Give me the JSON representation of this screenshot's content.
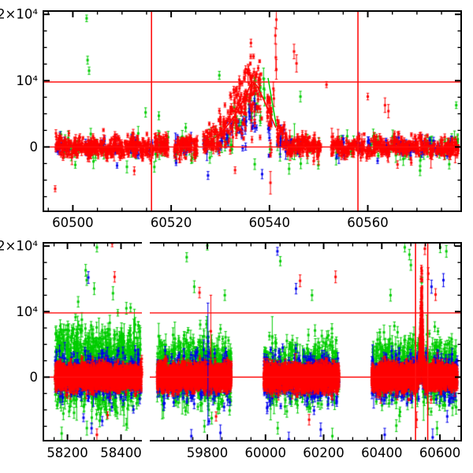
{
  "chart_data": {
    "type": "scatter",
    "title": "",
    "xlabel": "",
    "ylabel": "",
    "legend": "none",
    "grid": "off",
    "colors": {
      "red": "#ff0000",
      "green": "#00cd00",
      "blue": "#0000ee",
      "reference": "#ff1010",
      "axis": "#000000"
    },
    "y_axis_shared": {
      "range": [
        -9700,
        20500
      ],
      "major_ticks": [
        0,
        10000,
        20000
      ],
      "major_labels": [
        "0",
        "10⁴",
        "2×10⁴"
      ],
      "minor_step": 2500
    },
    "panels": [
      {
        "id": "top",
        "seed": 7,
        "x_segments": [
          {
            "range": [
              60494,
              60579
            ],
            "px": [
              55,
              585
            ],
            "major_ticks": [
              60500,
              60520,
              60540,
              60560
            ],
            "major_labels": [
              "60500",
              "60520",
              "60540",
              "60560"
            ],
            "minor_step": 5
          }
        ],
        "h_lines": [
          0,
          9800
        ],
        "v_lines": [
          60516,
          60558
        ],
        "flare": {
          "profile": [
            [
              60526.5,
              300
            ],
            [
              60529,
              1400
            ],
            [
              60531,
              2800
            ],
            [
              60533,
              4800
            ],
            [
              60535,
              7500
            ],
            [
              60536.4,
              9800
            ],
            [
              60537.4,
              9300
            ],
            [
              60538.6,
              7500
            ],
            [
              60539.6,
              5800
            ],
            [
              60541.3,
              2900
            ],
            [
              60542.5,
              1400
            ],
            [
              60543.5,
              400
            ]
          ]
        },
        "model_lines": [
          {
            "color": "red",
            "points": [
              [
                60526.5,
                300
              ],
              [
                60529,
                1400
              ],
              [
                60531,
                2800
              ],
              [
                60533,
                4800
              ],
              [
                60535,
                7500
              ],
              [
                60536.4,
                9800
              ],
              [
                60537.4,
                9300
              ],
              [
                60538.6,
                7500
              ],
              [
                60539.6,
                5800
              ],
              [
                60541.3,
                2900
              ]
            ]
          },
          {
            "color": "green",
            "points": [
              [
                60539.7,
                10400
              ],
              [
                60541.4,
                3100
              ]
            ]
          }
        ],
        "clusters": [
          {
            "x0": 60495,
            "x1": 60578,
            "step": 1,
            "skip_p": 0.12,
            "jitter": 0.45,
            "series": [
              {
                "color": "green",
                "p": 0.6,
                "n": 4,
                "sigma": 950,
                "err": [
                  350,
                  1100
                ],
                "flare_scale": 0.55
              },
              {
                "color": "blue",
                "p": 0.55,
                "n": 6,
                "sigma": 620,
                "err": [
                  250,
                  700
                ],
                "flare_scale": 0.45
              },
              {
                "color": "red",
                "p": 1.0,
                "n": 20,
                "sigma": 680,
                "err": [
                  200,
                  600
                ],
                "flare_scale": 1.0
              }
            ]
          }
        ],
        "outliers": [
          [
            60502.8,
            19400,
            500,
            "green"
          ],
          [
            60503.0,
            13100,
            600,
            "green"
          ],
          [
            60503.3,
            11500,
            550,
            "green"
          ],
          [
            60496.4,
            -6300,
            450,
            "red"
          ],
          [
            60500.5,
            -2700,
            500,
            "green"
          ],
          [
            60509.0,
            -2800,
            400,
            "blue"
          ],
          [
            60511.0,
            -3000,
            900,
            "green"
          ],
          [
            60512.5,
            -3600,
            600,
            "red"
          ],
          [
            60514.8,
            5200,
            700,
            "green"
          ],
          [
            60517.5,
            4700,
            600,
            "green"
          ],
          [
            60521.0,
            -2400,
            400,
            "blue"
          ],
          [
            60527.5,
            -4300,
            600,
            "blue"
          ],
          [
            60529.8,
            10800,
            600,
            "green"
          ],
          [
            60533.0,
            -3500,
            500,
            "red"
          ],
          [
            60537.0,
            -2600,
            800,
            "green"
          ],
          [
            60538.5,
            -4100,
            700,
            "blue"
          ],
          [
            60538.8,
            10300,
            1600,
            "green"
          ],
          [
            60538.9,
            8800,
            1500,
            "green"
          ],
          [
            60539.0,
            7400,
            1200,
            "green"
          ],
          [
            60540.2,
            -5400,
            1700,
            "red"
          ],
          [
            60540.8,
            8800,
            1000,
            "red"
          ],
          [
            60540.9,
            7300,
            1200,
            "red"
          ],
          [
            60541.2,
            16800,
            1200,
            "red"
          ],
          [
            60541.3,
            13500,
            2000,
            "red"
          ],
          [
            60541.4,
            11700,
            1500,
            "red"
          ],
          [
            60541.4,
            19200,
            1400,
            "red"
          ],
          [
            60544.0,
            -3300,
            800,
            "green"
          ],
          [
            60545.0,
            14400,
            1100,
            "red"
          ],
          [
            60545.5,
            12600,
            1300,
            "red"
          ],
          [
            60546.3,
            7600,
            800,
            "green"
          ],
          [
            60551.6,
            9400,
            450,
            "red"
          ],
          [
            60560.0,
            7600,
            500,
            "red"
          ],
          [
            60562.0,
            -2100,
            400,
            "blue"
          ],
          [
            60563.5,
            6300,
            1100,
            "red"
          ],
          [
            60564.2,
            5400,
            1000,
            "red"
          ],
          [
            60578.0,
            6300,
            500,
            "green"
          ]
        ]
      },
      {
        "id": "bottom",
        "seed": 13,
        "x_segments": [
          {
            "range": [
              58110,
              58478
            ],
            "px": [
              55,
              180
            ],
            "major_ticks": [
              58200,
              58400
            ],
            "major_labels": [
              "58200",
              "58400"
            ],
            "minor_step": 50
          },
          {
            "range": [
              59602,
              60673
            ],
            "px": [
              190,
              585
            ],
            "major_ticks": [
              59800,
              60000,
              60200,
              60400,
              60600
            ],
            "major_labels": [
              "59800",
              "60000",
              "60200",
              "60400",
              "60600"
            ],
            "minor_step": 50
          }
        ],
        "h_lines": [
          0,
          9800
        ],
        "v_lines": [
          60516,
          60558
        ],
        "flare": {
          "profile": [
            [
              60526.5,
              300
            ],
            [
              60529,
              1400
            ],
            [
              60531,
              2800
            ],
            [
              60533,
              4800
            ],
            [
              60535,
              7500
            ],
            [
              60536.4,
              9800
            ],
            [
              60537.4,
              9300
            ],
            [
              60538.6,
              7500
            ],
            [
              60539.6,
              5800
            ],
            [
              60541.3,
              2900
            ],
            [
              60542.5,
              1400
            ],
            [
              60543.5,
              400
            ]
          ]
        },
        "model_lines": [],
        "clusters": [
          {
            "x0": 58155,
            "x1": 58478,
            "step": 1,
            "skip_p": 0.15,
            "jitter": 0.6,
            "series": [
              {
                "color": "green",
                "p": 0.75,
                "n": 5,
                "sigma": 2900,
                "mean": 1400,
                "err": [
                  400,
                  1200
                ]
              },
              {
                "color": "blue",
                "p": 0.55,
                "n": 3,
                "sigma": 1600,
                "err": [
                  300,
                  900
                ]
              },
              {
                "color": "red",
                "p": 1.0,
                "n": 9,
                "sigma": 780,
                "err": [
                  200,
                  550
                ]
              }
            ]
          },
          {
            "x0": 59628,
            "x1": 59882,
            "step": 1,
            "skip_p": 0.12,
            "jitter": 0.6,
            "series": [
              {
                "color": "green",
                "p": 0.7,
                "n": 4,
                "sigma": 2400,
                "mean": 900,
                "err": [
                  400,
                  1200
                ]
              },
              {
                "color": "blue",
                "p": 0.55,
                "n": 3,
                "sigma": 1700,
                "err": [
                  300,
                  900
                ]
              },
              {
                "color": "red",
                "p": 1.0,
                "n": 12,
                "sigma": 800,
                "err": [
                  200,
                  550
                ]
              }
            ]
          },
          {
            "x0": 59995,
            "x1": 60252,
            "step": 1,
            "skip_p": 0.12,
            "jitter": 0.6,
            "series": [
              {
                "color": "green",
                "p": 0.7,
                "n": 4,
                "sigma": 2300,
                "mean": 800,
                "err": [
                  400,
                  1200
                ]
              },
              {
                "color": "blue",
                "p": 0.55,
                "n": 3,
                "sigma": 1700,
                "err": [
                  300,
                  900
                ]
              },
              {
                "color": "red",
                "p": 1.0,
                "n": 12,
                "sigma": 800,
                "err": [
                  200,
                  550
                ]
              }
            ]
          },
          {
            "x0": 60366,
            "x1": 60660,
            "step": 1,
            "skip_p": 0.12,
            "jitter": 0.6,
            "series": [
              {
                "color": "green",
                "p": 0.7,
                "n": 4,
                "sigma": 2300,
                "mean": 800,
                "err": [
                  400,
                  1200
                ],
                "flare_scale": 0.5
              },
              {
                "color": "blue",
                "p": 0.55,
                "n": 3,
                "sigma": 1700,
                "err": [
                  300,
                  900
                ],
                "flare_scale": 0.4
              },
              {
                "color": "red",
                "p": 1.0,
                "n": 11,
                "sigma": 800,
                "err": [
                  200,
                  550
                ],
                "flare_scale": 1.0,
                "flare_boost": true
              }
            ]
          }
        ],
        "outliers": [
          [
            58310,
            19800,
            700,
            "green"
          ],
          [
            58268,
            16300,
            900,
            "green"
          ],
          [
            58272,
            14800,
            800,
            "green"
          ],
          [
            58300,
            13500,
            900,
            "green"
          ],
          [
            58376,
            15300,
            800,
            "red"
          ],
          [
            58370,
            12800,
            1000,
            "green"
          ],
          [
            58240,
            11500,
            800,
            "green"
          ],
          [
            58420,
            10500,
            900,
            "green"
          ],
          [
            58367,
            20400,
            500,
            "red"
          ],
          [
            58278,
            15200,
            900,
            "blue"
          ],
          [
            58310,
            -8800,
            900,
            "red"
          ],
          [
            58290,
            -7800,
            800,
            "blue"
          ],
          [
            58330,
            -6700,
            700,
            "blue"
          ],
          [
            58420,
            -7200,
            900,
            "green"
          ],
          [
            58260,
            -6200,
            600,
            "blue"
          ],
          [
            58350,
            -5800,
            500,
            "red"
          ],
          [
            59800,
            20100,
            700,
            "green"
          ],
          [
            59729,
            18300,
            700,
            "green"
          ],
          [
            59755,
            13800,
            900,
            "green"
          ],
          [
            59860,
            12500,
            800,
            "green"
          ],
          [
            59773,
            12900,
            800,
            "red"
          ],
          [
            59802,
            2000,
            9300,
            "blue"
          ],
          [
            59812,
            7000,
            5500,
            "red"
          ],
          [
            59745,
            -9000,
            1000,
            "blue"
          ],
          [
            59790,
            -7500,
            900,
            "green"
          ],
          [
            59845,
            -8500,
            1200,
            "blue"
          ],
          [
            59830,
            -6000,
            700,
            "red"
          ],
          [
            60041,
            19200,
            600,
            "blue"
          ],
          [
            60051,
            17700,
            700,
            "green"
          ],
          [
            60119,
            14700,
            900,
            "red"
          ],
          [
            60105,
            13500,
            800,
            "blue"
          ],
          [
            60160,
            12500,
            800,
            "green"
          ],
          [
            60241,
            15300,
            900,
            "red"
          ],
          [
            60080,
            -9500,
            1100,
            "blue"
          ],
          [
            60042,
            -7800,
            900,
            "green"
          ],
          [
            60190,
            -8000,
            1000,
            "blue"
          ],
          [
            60150,
            -6500,
            800,
            "red"
          ],
          [
            60230,
            -9000,
            1200,
            "green"
          ],
          [
            60479,
            19800,
            700,
            "green"
          ],
          [
            60495,
            18700,
            800,
            "green"
          ],
          [
            60500,
            17100,
            800,
            "green"
          ],
          [
            60548,
            19600,
            900,
            "red"
          ],
          [
            60601,
            19800,
            800,
            "green"
          ],
          [
            60622,
            19200,
            900,
            "green"
          ],
          [
            60560,
            15800,
            900,
            "red"
          ],
          [
            60571,
            13800,
            1000,
            "blue"
          ],
          [
            60585,
            12600,
            900,
            "red"
          ],
          [
            60612,
            14800,
            1000,
            "blue"
          ],
          [
            60430,
            12500,
            900,
            "green"
          ],
          [
            60410,
            -8800,
            1000,
            "blue"
          ],
          [
            60450,
            -7400,
            900,
            "green"
          ],
          [
            60520,
            -6500,
            1200,
            "red"
          ],
          [
            60575,
            -9200,
            1300,
            "blue"
          ],
          [
            60590,
            -7800,
            1000,
            "green"
          ],
          [
            60625,
            -6000,
            900,
            "blue"
          ]
        ]
      }
    ]
  }
}
